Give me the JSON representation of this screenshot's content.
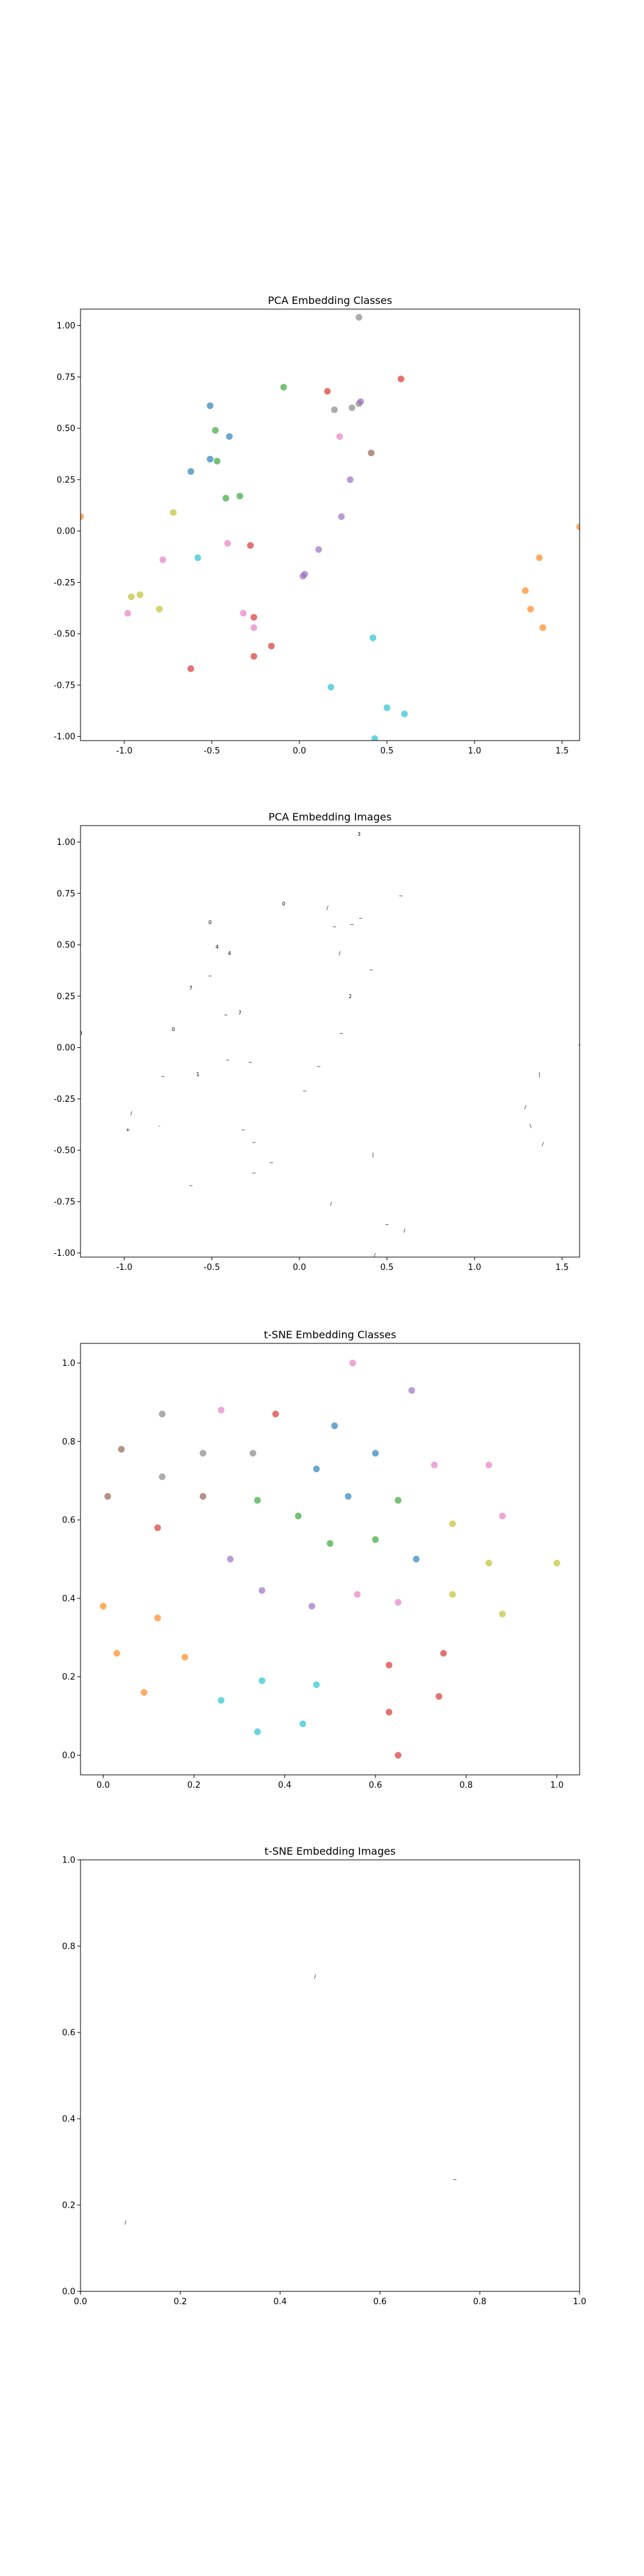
{
  "figure": {
    "background": "#ffffff"
  },
  "chart_data": [
    {
      "type": "scatter",
      "title": "PCA Embedding Classes",
      "xlim": [
        -1.25,
        1.6
      ],
      "ylim": [
        -1.02,
        1.08
      ],
      "xticks": [
        "-1.0",
        "-0.5",
        "0.0",
        "0.5",
        "1.0",
        "1.5"
      ],
      "yticks": [
        "-1.00",
        "-0.75",
        "-0.50",
        "-0.25",
        "0.00",
        "0.25",
        "0.50",
        "0.75",
        "1.00"
      ],
      "grid": false,
      "marker": "circle",
      "points": [
        {
          "x": -0.51,
          "y": 0.61,
          "color": "#1f77b4"
        },
        {
          "x": -0.62,
          "y": 0.29,
          "color": "#1f77b4"
        },
        {
          "x": -0.51,
          "y": 0.35,
          "color": "#1f77b4"
        },
        {
          "x": -0.47,
          "y": 0.34,
          "color": "#2ca02c"
        },
        {
          "x": -0.4,
          "y": 0.46,
          "color": "#1f77b4"
        },
        {
          "x": -0.48,
          "y": 0.49,
          "color": "#2ca02c"
        },
        {
          "x": -0.42,
          "y": 0.16,
          "color": "#2ca02c"
        },
        {
          "x": -0.34,
          "y": 0.17,
          "color": "#2ca02c"
        },
        {
          "x": -0.09,
          "y": 0.7,
          "color": "#2ca02c"
        },
        {
          "x": -0.72,
          "y": 0.09,
          "color": "#bcbd22"
        },
        {
          "x": -0.58,
          "y": -0.13,
          "color": "#17becf"
        },
        {
          "x": -0.78,
          "y": -0.14,
          "color": "#e377c2"
        },
        {
          "x": -0.41,
          "y": -0.06,
          "color": "#e377c2"
        },
        {
          "x": -0.28,
          "y": -0.07,
          "color": "#d62728"
        },
        {
          "x": -0.96,
          "y": -0.32,
          "color": "#bcbd22"
        },
        {
          "x": -0.91,
          "y": -0.31,
          "color": "#bcbd22"
        },
        {
          "x": -0.8,
          "y": -0.38,
          "color": "#bcbd22"
        },
        {
          "x": -0.98,
          "y": -0.4,
          "color": "#e377c2"
        },
        {
          "x": -0.32,
          "y": -0.4,
          "color": "#e377c2"
        },
        {
          "x": -0.26,
          "y": -0.42,
          "color": "#d62728"
        },
        {
          "x": -0.26,
          "y": -0.47,
          "color": "#e377c2"
        },
        {
          "x": -0.16,
          "y": -0.56,
          "color": "#d62728"
        },
        {
          "x": -0.26,
          "y": -0.61,
          "color": "#d62728"
        },
        {
          "x": -0.62,
          "y": -0.67,
          "color": "#d62728"
        },
        {
          "x": 0.03,
          "y": -0.21,
          "color": "#9467bd"
        },
        {
          "x": 0.02,
          "y": -0.22,
          "color": "#9467bd"
        },
        {
          "x": 0.11,
          "y": -0.09,
          "color": "#9467bd"
        },
        {
          "x": 0.16,
          "y": 0.68,
          "color": "#d62728"
        },
        {
          "x": 0.2,
          "y": 0.59,
          "color": "#7f7f7f"
        },
        {
          "x": 0.23,
          "y": 0.46,
          "color": "#e377c2"
        },
        {
          "x": 0.3,
          "y": 0.6,
          "color": "#7f7f7f"
        },
        {
          "x": 0.34,
          "y": 0.62,
          "color": "#7f7f7f"
        },
        {
          "x": 0.35,
          "y": 0.63,
          "color": "#9467bd"
        },
        {
          "x": 0.58,
          "y": 0.74,
          "color": "#d62728"
        },
        {
          "x": 0.34,
          "y": 1.04,
          "color": "#7f7f7f"
        },
        {
          "x": 0.41,
          "y": 0.38,
          "color": "#8c564b"
        },
        {
          "x": 0.29,
          "y": 0.25,
          "color": "#9467bd"
        },
        {
          "x": 0.24,
          "y": 0.07,
          "color": "#9467bd"
        },
        {
          "x": 0.42,
          "y": -0.52,
          "color": "#17becf"
        },
        {
          "x": 0.18,
          "y": -0.76,
          "color": "#17becf"
        },
        {
          "x": 0.5,
          "y": -0.86,
          "color": "#17becf"
        },
        {
          "x": 0.6,
          "y": -0.89,
          "color": "#17becf"
        },
        {
          "x": 0.43,
          "y": -1.01,
          "color": "#17becf"
        },
        {
          "x": 1.37,
          "y": -0.13,
          "color": "#ff7f0e"
        },
        {
          "x": 1.29,
          "y": -0.29,
          "color": "#ff7f0e"
        },
        {
          "x": 1.32,
          "y": -0.38,
          "color": "#ff7f0e"
        },
        {
          "x": 1.39,
          "y": -0.47,
          "color": "#ff7f0e"
        },
        {
          "x": 1.6,
          "y": 0.02,
          "color": "#ff7f0e"
        },
        {
          "x": -1.25,
          "y": 0.07,
          "color": "#ff7f0e"
        }
      ]
    },
    {
      "type": "scatter",
      "title": "PCA Embedding Images",
      "xlim": [
        -1.25,
        1.6
      ],
      "ylim": [
        -1.02,
        1.08
      ],
      "xticks": [
        "-1.0",
        "-0.5",
        "0.0",
        "0.5",
        "1.0",
        "1.5"
      ],
      "yticks": [
        "-1.00",
        "-0.75",
        "-0.50",
        "-0.25",
        "0.00",
        "0.25",
        "0.50",
        "0.75",
        "1.00"
      ],
      "grid": false,
      "marker": "image",
      "points": [
        {
          "x": -0.51,
          "y": 0.61,
          "label": "0"
        },
        {
          "x": -0.62,
          "y": 0.29,
          "label": "7"
        },
        {
          "x": -0.51,
          "y": 0.35,
          "label": "~"
        },
        {
          "x": -0.47,
          "y": 0.49,
          "label": "4"
        },
        {
          "x": -0.4,
          "y": 0.46,
          "label": "4"
        },
        {
          "x": -0.42,
          "y": 0.16,
          "label": "~"
        },
        {
          "x": -0.34,
          "y": 0.17,
          "label": "7"
        },
        {
          "x": -0.09,
          "y": 0.7,
          "label": "0"
        },
        {
          "x": -0.72,
          "y": 0.09,
          "label": "0"
        },
        {
          "x": -0.58,
          "y": -0.13,
          "label": "1"
        },
        {
          "x": -0.78,
          "y": -0.14,
          "label": "~"
        },
        {
          "x": -0.41,
          "y": -0.06,
          "label": "~"
        },
        {
          "x": -0.28,
          "y": -0.07,
          "label": "~"
        },
        {
          "x": -0.96,
          "y": -0.32,
          "label": "/"
        },
        {
          "x": -0.8,
          "y": -0.38,
          "label": "-"
        },
        {
          "x": -0.98,
          "y": -0.4,
          "label": "+"
        },
        {
          "x": -0.32,
          "y": -0.4,
          "label": "~"
        },
        {
          "x": -0.26,
          "y": -0.46,
          "label": "~"
        },
        {
          "x": -0.16,
          "y": -0.56,
          "label": "~"
        },
        {
          "x": -0.26,
          "y": -0.61,
          "label": "~"
        },
        {
          "x": -0.62,
          "y": -0.67,
          "label": "~"
        },
        {
          "x": 0.03,
          "y": -0.21,
          "label": "~"
        },
        {
          "x": 0.11,
          "y": -0.09,
          "label": "~"
        },
        {
          "x": 0.16,
          "y": 0.68,
          "label": "/"
        },
        {
          "x": 0.2,
          "y": 0.59,
          "label": "~"
        },
        {
          "x": 0.23,
          "y": 0.46,
          "label": "/"
        },
        {
          "x": 0.3,
          "y": 0.6,
          "label": "~"
        },
        {
          "x": 0.35,
          "y": 0.63,
          "label": "~"
        },
        {
          "x": 0.58,
          "y": 0.74,
          "label": "~"
        },
        {
          "x": 0.34,
          "y": 1.04,
          "label": "3"
        },
        {
          "x": 0.41,
          "y": 0.38,
          "label": "~"
        },
        {
          "x": 0.29,
          "y": 0.25,
          "label": "2"
        },
        {
          "x": 0.24,
          "y": 0.07,
          "label": "~"
        },
        {
          "x": 0.42,
          "y": -0.52,
          "label": "|"
        },
        {
          "x": 0.18,
          "y": -0.76,
          "label": "/"
        },
        {
          "x": 0.5,
          "y": -0.86,
          "label": "~"
        },
        {
          "x": 0.6,
          "y": -0.89,
          "label": "/"
        },
        {
          "x": 0.43,
          "y": -1.01,
          "label": "/"
        },
        {
          "x": 1.37,
          "y": -0.13,
          "label": "|"
        },
        {
          "x": 1.29,
          "y": -0.29,
          "label": "/"
        },
        {
          "x": 1.32,
          "y": -0.38,
          "label": "\\"
        },
        {
          "x": 1.39,
          "y": -0.47,
          "label": "/"
        },
        {
          "x": 1.6,
          "y": 0.02,
          "label": "/"
        },
        {
          "x": -1.25,
          "y": 0.07,
          "label": "0"
        }
      ]
    },
    {
      "type": "scatter",
      "title": "t-SNE Embedding Classes",
      "xlim": [
        -0.05,
        1.05
      ],
      "ylim": [
        -0.05,
        1.05
      ],
      "xticks": [
        "0.0",
        "0.2",
        "0.4",
        "0.6",
        "0.8",
        "1.0"
      ],
      "yticks": [
        "0.0",
        "0.2",
        "0.4",
        "0.6",
        "0.8",
        "1.0"
      ],
      "grid": false,
      "marker": "circle",
      "points": [
        {
          "x": 0.55,
          "y": 1.0,
          "color": "#e377c2"
        },
        {
          "x": 0.68,
          "y": 0.93,
          "color": "#9467bd"
        },
        {
          "x": 0.13,
          "y": 0.87,
          "color": "#7f7f7f"
        },
        {
          "x": 0.26,
          "y": 0.88,
          "color": "#e377c2"
        },
        {
          "x": 0.38,
          "y": 0.87,
          "color": "#d62728"
        },
        {
          "x": 0.51,
          "y": 0.84,
          "color": "#1f77b4"
        },
        {
          "x": 0.04,
          "y": 0.78,
          "color": "#8c564b"
        },
        {
          "x": 0.22,
          "y": 0.77,
          "color": "#7f7f7f"
        },
        {
          "x": 0.33,
          "y": 0.77,
          "color": "#7f7f7f"
        },
        {
          "x": 0.6,
          "y": 0.77,
          "color": "#1f77b4"
        },
        {
          "x": 0.47,
          "y": 0.73,
          "color": "#1f77b4"
        },
        {
          "x": 0.73,
          "y": 0.74,
          "color": "#e377c2"
        },
        {
          "x": 0.85,
          "y": 0.74,
          "color": "#e377c2"
        },
        {
          "x": 0.13,
          "y": 0.71,
          "color": "#7f7f7f"
        },
        {
          "x": 0.01,
          "y": 0.66,
          "color": "#8c564b"
        },
        {
          "x": 0.22,
          "y": 0.66,
          "color": "#8c564b"
        },
        {
          "x": 0.34,
          "y": 0.65,
          "color": "#2ca02c"
        },
        {
          "x": 0.54,
          "y": 0.66,
          "color": "#1f77b4"
        },
        {
          "x": 0.65,
          "y": 0.65,
          "color": "#2ca02c"
        },
        {
          "x": 0.43,
          "y": 0.61,
          "color": "#2ca02c"
        },
        {
          "x": 0.88,
          "y": 0.61,
          "color": "#e377c2"
        },
        {
          "x": 0.12,
          "y": 0.58,
          "color": "#d62728"
        },
        {
          "x": 0.77,
          "y": 0.59,
          "color": "#bcbd22"
        },
        {
          "x": 0.6,
          "y": 0.55,
          "color": "#2ca02c"
        },
        {
          "x": 0.5,
          "y": 0.54,
          "color": "#2ca02c"
        },
        {
          "x": 0.28,
          "y": 0.5,
          "color": "#9467bd"
        },
        {
          "x": 0.69,
          "y": 0.5,
          "color": "#1f77b4"
        },
        {
          "x": 0.85,
          "y": 0.49,
          "color": "#bcbd22"
        },
        {
          "x": 1.0,
          "y": 0.49,
          "color": "#bcbd22"
        },
        {
          "x": 0.35,
          "y": 0.42,
          "color": "#9467bd"
        },
        {
          "x": 0.56,
          "y": 0.41,
          "color": "#e377c2"
        },
        {
          "x": 0.77,
          "y": 0.41,
          "color": "#bcbd22"
        },
        {
          "x": 0.46,
          "y": 0.38,
          "color": "#9467bd"
        },
        {
          "x": 0.65,
          "y": 0.39,
          "color": "#e377c2"
        },
        {
          "x": 0.0,
          "y": 0.38,
          "color": "#ff7f0e"
        },
        {
          "x": 0.12,
          "y": 0.35,
          "color": "#ff7f0e"
        },
        {
          "x": 0.88,
          "y": 0.36,
          "color": "#bcbd22"
        },
        {
          "x": 0.03,
          "y": 0.26,
          "color": "#ff7f0e"
        },
        {
          "x": 0.75,
          "y": 0.26,
          "color": "#d62728"
        },
        {
          "x": 0.18,
          "y": 0.25,
          "color": "#ff7f0e"
        },
        {
          "x": 0.63,
          "y": 0.23,
          "color": "#d62728"
        },
        {
          "x": 0.35,
          "y": 0.19,
          "color": "#17becf"
        },
        {
          "x": 0.47,
          "y": 0.18,
          "color": "#17becf"
        },
        {
          "x": 0.09,
          "y": 0.16,
          "color": "#ff7f0e"
        },
        {
          "x": 0.74,
          "y": 0.15,
          "color": "#d62728"
        },
        {
          "x": 0.26,
          "y": 0.14,
          "color": "#17becf"
        },
        {
          "x": 0.63,
          "y": 0.11,
          "color": "#d62728"
        },
        {
          "x": 0.44,
          "y": 0.08,
          "color": "#17becf"
        },
        {
          "x": 0.34,
          "y": 0.06,
          "color": "#17becf"
        },
        {
          "x": 0.65,
          "y": 0.0,
          "color": "#d62728"
        }
      ]
    },
    {
      "type": "scatter",
      "title": "t-SNE Embedding Images",
      "xlim": [
        0.0,
        1.0
      ],
      "ylim": [
        0.0,
        1.0
      ],
      "xticks": [
        "0.0",
        "0.2",
        "0.4",
        "0.6",
        "0.8",
        "1.0"
      ],
      "yticks": [
        "0.0",
        "0.2",
        "0.4",
        "0.6",
        "0.8",
        "1.0"
      ],
      "grid": false,
      "marker": "image",
      "points": [
        {
          "x": 0.47,
          "y": 0.73,
          "label": "/"
        },
        {
          "x": 0.75,
          "y": 0.26,
          "label": "~"
        },
        {
          "x": 0.09,
          "y": 0.16,
          "label": "/"
        }
      ]
    }
  ]
}
